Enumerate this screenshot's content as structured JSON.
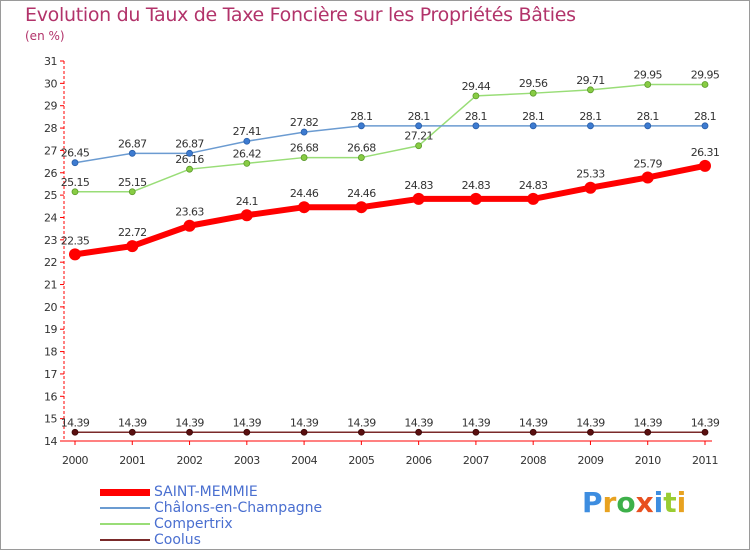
{
  "title": "Evolution du Taux de Taxe Foncière sur les Propriétés Bâties",
  "unit_label": "(en %)",
  "brand": {
    "letters": [
      {
        "char": "P",
        "color": "#3d8de0"
      },
      {
        "char": "r",
        "color": "#e8a220"
      },
      {
        "char": "o",
        "color": "#3db04a"
      },
      {
        "char": "x",
        "color": "#e85020"
      },
      {
        "char": "i",
        "color": "#3d8de0"
      },
      {
        "char": "t",
        "color": "#9acd32"
      },
      {
        "char": "i",
        "color": "#e8a220"
      }
    ]
  },
  "chart_data": {
    "type": "line",
    "title": "Evolution du Taux de Taxe Foncière sur les Propriétés Bâties",
    "ylabel": "(en %)",
    "xlabel": "",
    "ylim": [
      14,
      31
    ],
    "yticks": [
      "14",
      "15",
      "16",
      "17",
      "18",
      "19",
      "20",
      "21",
      "22",
      "23",
      "24",
      "25",
      "26",
      "27",
      "28",
      "29",
      "30",
      "31"
    ],
    "x": [
      "2000",
      "2001",
      "2002",
      "2003",
      "2004",
      "2005",
      "2006",
      "2007",
      "2008",
      "2009",
      "2010",
      "2011"
    ],
    "series": [
      {
        "name": "SAINT-MEMMIE",
        "color": "#ff0000",
        "values": [
          22.35,
          22.72,
          23.63,
          24.1,
          24.46,
          24.46,
          24.83,
          24.83,
          24.83,
          25.33,
          25.79,
          26.31
        ],
        "labels": [
          "22.35",
          "22.72",
          "23.63",
          "24.1",
          "24.46",
          "24.46",
          "24.83",
          "24.83",
          "24.83",
          "25.33",
          "25.79",
          "26.31"
        ]
      },
      {
        "name": "Châlons-en-Champagne",
        "color": "#6b9bd1",
        "values": [
          26.45,
          26.87,
          26.87,
          27.41,
          27.82,
          28.1,
          28.1,
          28.1,
          28.1,
          28.1,
          28.1,
          28.1
        ],
        "labels": [
          "26.45",
          "26.87",
          "26.87",
          "27.41",
          "27.82",
          "28.1",
          "28.1",
          "28.1",
          "28.1",
          "28.1",
          "28.1",
          "28.1"
        ]
      },
      {
        "name": "Compertrix",
        "color": "#99dd77",
        "values": [
          25.15,
          25.15,
          26.16,
          26.42,
          26.68,
          26.68,
          27.21,
          29.44,
          29.56,
          29.71,
          29.95,
          29.95
        ],
        "labels": [
          "25.15",
          "25.15",
          "26.16",
          "26.42",
          "26.68",
          "26.68",
          "27.21",
          "29.44",
          "29.56",
          "29.71",
          "29.95",
          "29.95"
        ]
      },
      {
        "name": "Coolus",
        "color": "#7a2a2a",
        "values": [
          14.39,
          14.39,
          14.39,
          14.39,
          14.39,
          14.39,
          14.39,
          14.39,
          14.39,
          14.39,
          14.39,
          14.39
        ],
        "labels": [
          "14.39",
          "14.39",
          "14.39",
          "14.39",
          "14.39",
          "14.39",
          "14.39",
          "14.39",
          "14.39",
          "14.39",
          "14.39",
          "14.39"
        ]
      }
    ],
    "legend_position": "bottom-left"
  }
}
